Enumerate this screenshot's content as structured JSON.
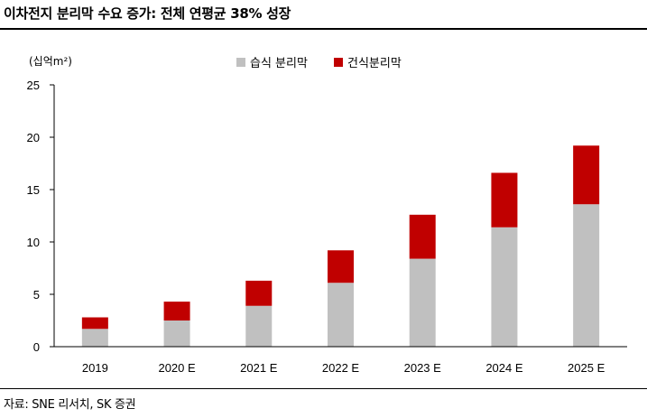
{
  "header": {
    "title": "이차전지 분리막 수요 증가: 전체 연평균 38% 성장"
  },
  "footer": {
    "source": "자료: SNE 리서치, SK 증권"
  },
  "chart_data": {
    "type": "bar",
    "stacked": true,
    "title": "",
    "ylabel": "(십억m²)",
    "xlabel": "",
    "ylim": [
      0,
      25
    ],
    "yticks": [
      "0",
      "5",
      "10",
      "15",
      "20",
      "25"
    ],
    "grid": false,
    "legend_position": "top-center",
    "categories": [
      "2019",
      "2020 E",
      "2021 E",
      "2022 E",
      "2023 E",
      "2024 E",
      "2025 E"
    ],
    "series": [
      {
        "name": "습식 분리막",
        "color": "#c0c0c0",
        "values": [
          1.7,
          2.5,
          3.9,
          6.1,
          8.4,
          11.4,
          13.6
        ]
      },
      {
        "name": "건식분리막",
        "color": "#c00000",
        "values": [
          1.1,
          1.8,
          2.4,
          3.1,
          4.2,
          5.2,
          5.6
        ]
      }
    ]
  }
}
